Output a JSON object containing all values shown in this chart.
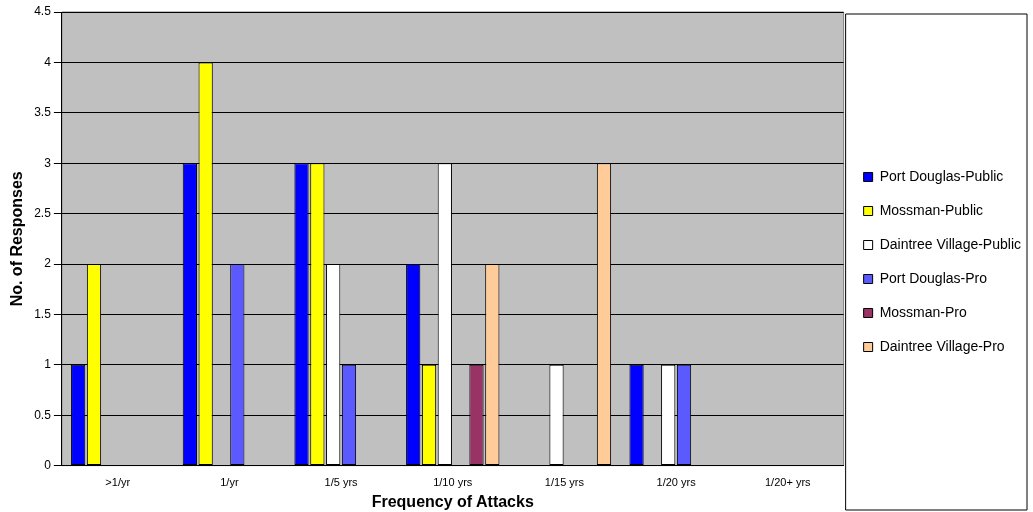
{
  "chart_data": {
    "type": "bar",
    "xlabel": "Frequency of Attacks",
    "ylabel": "No. of Responses",
    "categories": [
      ">1/yr",
      "1/yr",
      "1/5 yrs",
      "1/10 yrs",
      "1/15 yrs",
      "1/20 yrs",
      "1/20+ yrs"
    ],
    "series": [
      {
        "name": "Port Douglas-Public",
        "color": "#0000ff",
        "values": [
          1,
          3,
          3,
          2,
          0,
          1,
          0
        ]
      },
      {
        "name": "Mossman-Public",
        "color": "#ffff00",
        "values": [
          2,
          4,
          3,
          1,
          0,
          0,
          0
        ]
      },
      {
        "name": "Daintree Village-Public",
        "color": "#ffffff",
        "values": [
          0,
          0,
          2,
          3,
          1,
          1,
          0
        ]
      },
      {
        "name": "Port Douglas-Pro",
        "color": "#5a5aff",
        "values": [
          0,
          2,
          1,
          0,
          0,
          1,
          0
        ]
      },
      {
        "name": "Mossman-Pro",
        "color": "#993366",
        "values": [
          0,
          0,
          0,
          1,
          0,
          0,
          0
        ]
      },
      {
        "name": "Daintree Village-Pro",
        "color": "#ffcc99",
        "values": [
          0,
          0,
          0,
          2,
          3,
          0,
          0
        ]
      }
    ],
    "ylim": [
      0,
      4.5
    ],
    "yticks": [
      0,
      0.5,
      1,
      1.5,
      2,
      2.5,
      3,
      3.5,
      4,
      4.5
    ],
    "grid": "y",
    "legend": "right"
  }
}
